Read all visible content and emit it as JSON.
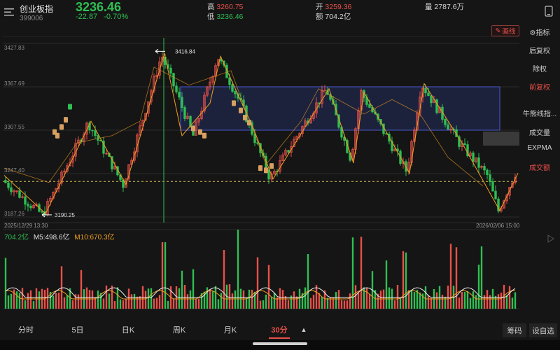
{
  "header": {
    "menu_icon": "menu-icon",
    "name": "创业板指",
    "code": "399006",
    "price": "3236.46",
    "change": "-22.87",
    "change_pct": "-0.70%",
    "high_label": "高",
    "high_value": "3260.75",
    "low_label": "低",
    "low_value": "3236.46",
    "open_label": "开",
    "open_value": "3259.36",
    "amount_label": "额",
    "amount_value": "704.2亿",
    "volume_label": "量",
    "volume_value": "2787.6万",
    "right_icon": "landscape-icon"
  },
  "toolbar": {
    "draw_line": "画线",
    "indicator": "指标"
  },
  "right_panel": {
    "items": [
      "后复权",
      "除权",
      "前复权",
      "牛熊线指...",
      "成交量",
      "EXPMA",
      "成交额"
    ],
    "active": [
      "前复权",
      "成交额"
    ]
  },
  "chart": {
    "y_ticks": [
      "3427.83",
      "3367.69",
      "3307.55",
      "3247.40",
      "3187.26"
    ],
    "date_start": "2025/12/29 13:30",
    "date_end": "2026/02/06 15:00",
    "marker_high": "3416.84",
    "marker_low": "3190.25",
    "colors": {
      "up": "#e8504a",
      "down": "#2fbf53",
      "zigzag": "#f0a020",
      "box": "#4a5ad0"
    }
  },
  "volume": {
    "amount": "704.2亿",
    "m5": "M5:498.6亿",
    "m10": "M10:670.3亿"
  },
  "tabs": {
    "items": [
      "分时",
      "5日",
      "日K",
      "周K",
      "月K",
      "30分"
    ],
    "active": "30分",
    "chip": "筹码",
    "custom": "设自选"
  },
  "chart_data": {
    "type": "candlestick",
    "y_ticks": [
      3427.83,
      3367.69,
      3307.55,
      3247.4,
      3187.26
    ],
    "ylim": [
      3187.26,
      3427.83
    ],
    "x_range": [
      "2025/12/29 13:30",
      "2026/02/06 15:00"
    ],
    "high_mark": 3416.84,
    "low_mark": 3190.25,
    "last_close": 3236.46,
    "box_range": [
      3307.55,
      3367.69
    ],
    "volume_series": [
      "成交额",
      "M5",
      "M10"
    ]
  }
}
